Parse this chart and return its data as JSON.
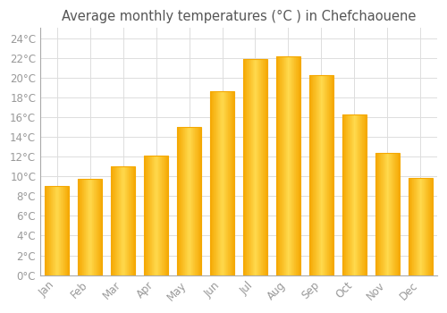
{
  "title": "Average monthly temperatures (°C ) in Chefchaouene",
  "months": [
    "Jan",
    "Feb",
    "Mar",
    "Apr",
    "May",
    "Jun",
    "Jul",
    "Aug",
    "Sep",
    "Oct",
    "Nov",
    "Dec"
  ],
  "values": [
    9.0,
    9.7,
    11.0,
    12.1,
    15.0,
    18.6,
    21.9,
    22.1,
    20.2,
    16.3,
    12.4,
    9.8
  ],
  "bar_color_center": "#FFD84D",
  "bar_color_edge": "#F5A800",
  "background_color": "#FFFFFF",
  "grid_color": "#DDDDDD",
  "ylim": [
    0,
    25
  ],
  "yticks": [
    0,
    2,
    4,
    6,
    8,
    10,
    12,
    14,
    16,
    18,
    20,
    22,
    24
  ],
  "ytick_labels": [
    "0°C",
    "2°C",
    "4°C",
    "6°C",
    "8°C",
    "10°C",
    "12°C",
    "14°C",
    "16°C",
    "18°C",
    "20°C",
    "22°C",
    "24°C"
  ],
  "title_fontsize": 10.5,
  "tick_fontsize": 8.5,
  "tick_color": "#999999",
  "title_color": "#555555",
  "bar_width": 0.75
}
